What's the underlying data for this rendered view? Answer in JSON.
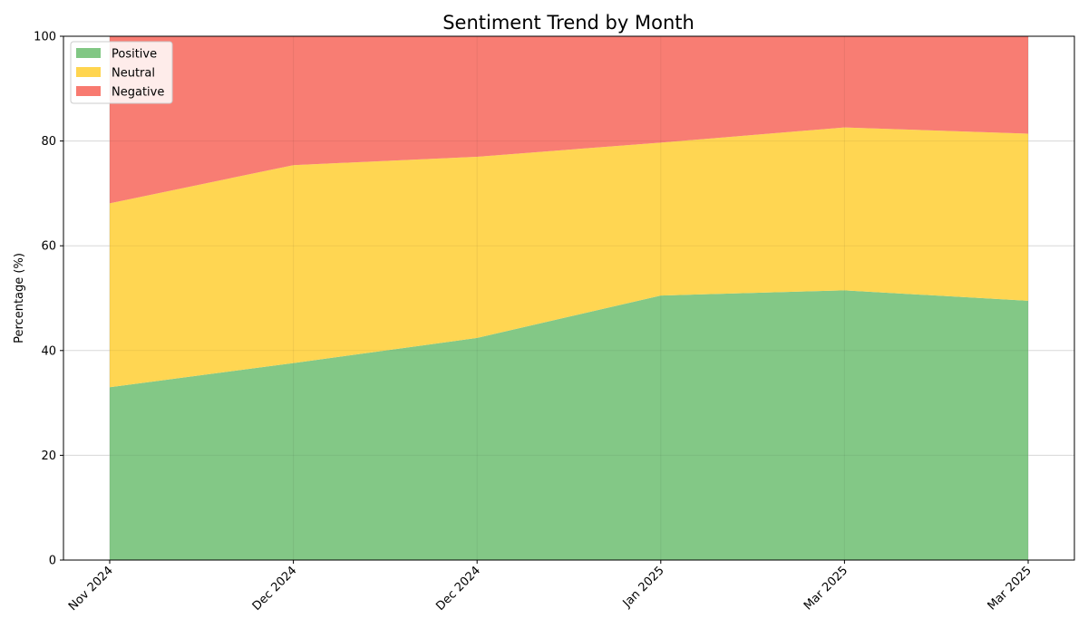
{
  "chart_data": {
    "type": "area",
    "stacked": true,
    "title": "Sentiment Trend by Month",
    "xlabel": "",
    "ylabel": "Percentage (%)",
    "ylim": [
      0,
      100
    ],
    "yticks": [
      0,
      20,
      40,
      60,
      80,
      100
    ],
    "categories": [
      "Nov 2024",
      "Dec 2024",
      "Dec 2024",
      "Jan 2025",
      "Mar 2025",
      "Mar 2025"
    ],
    "series": [
      {
        "name": "Positive",
        "color": "#81c784",
        "values": [
          33.0,
          37.6,
          42.4,
          50.5,
          51.5,
          49.5
        ]
      },
      {
        "name": "Neutral",
        "color": "#ffd54f",
        "values": [
          35.1,
          37.8,
          34.6,
          29.2,
          31.1,
          31.9
        ]
      },
      {
        "name": "Negative",
        "color": "#f87a70",
        "values": [
          31.9,
          24.6,
          23.0,
          20.3,
          17.4,
          18.6
        ]
      }
    ],
    "grid": true,
    "legend_position": "top-left"
  }
}
